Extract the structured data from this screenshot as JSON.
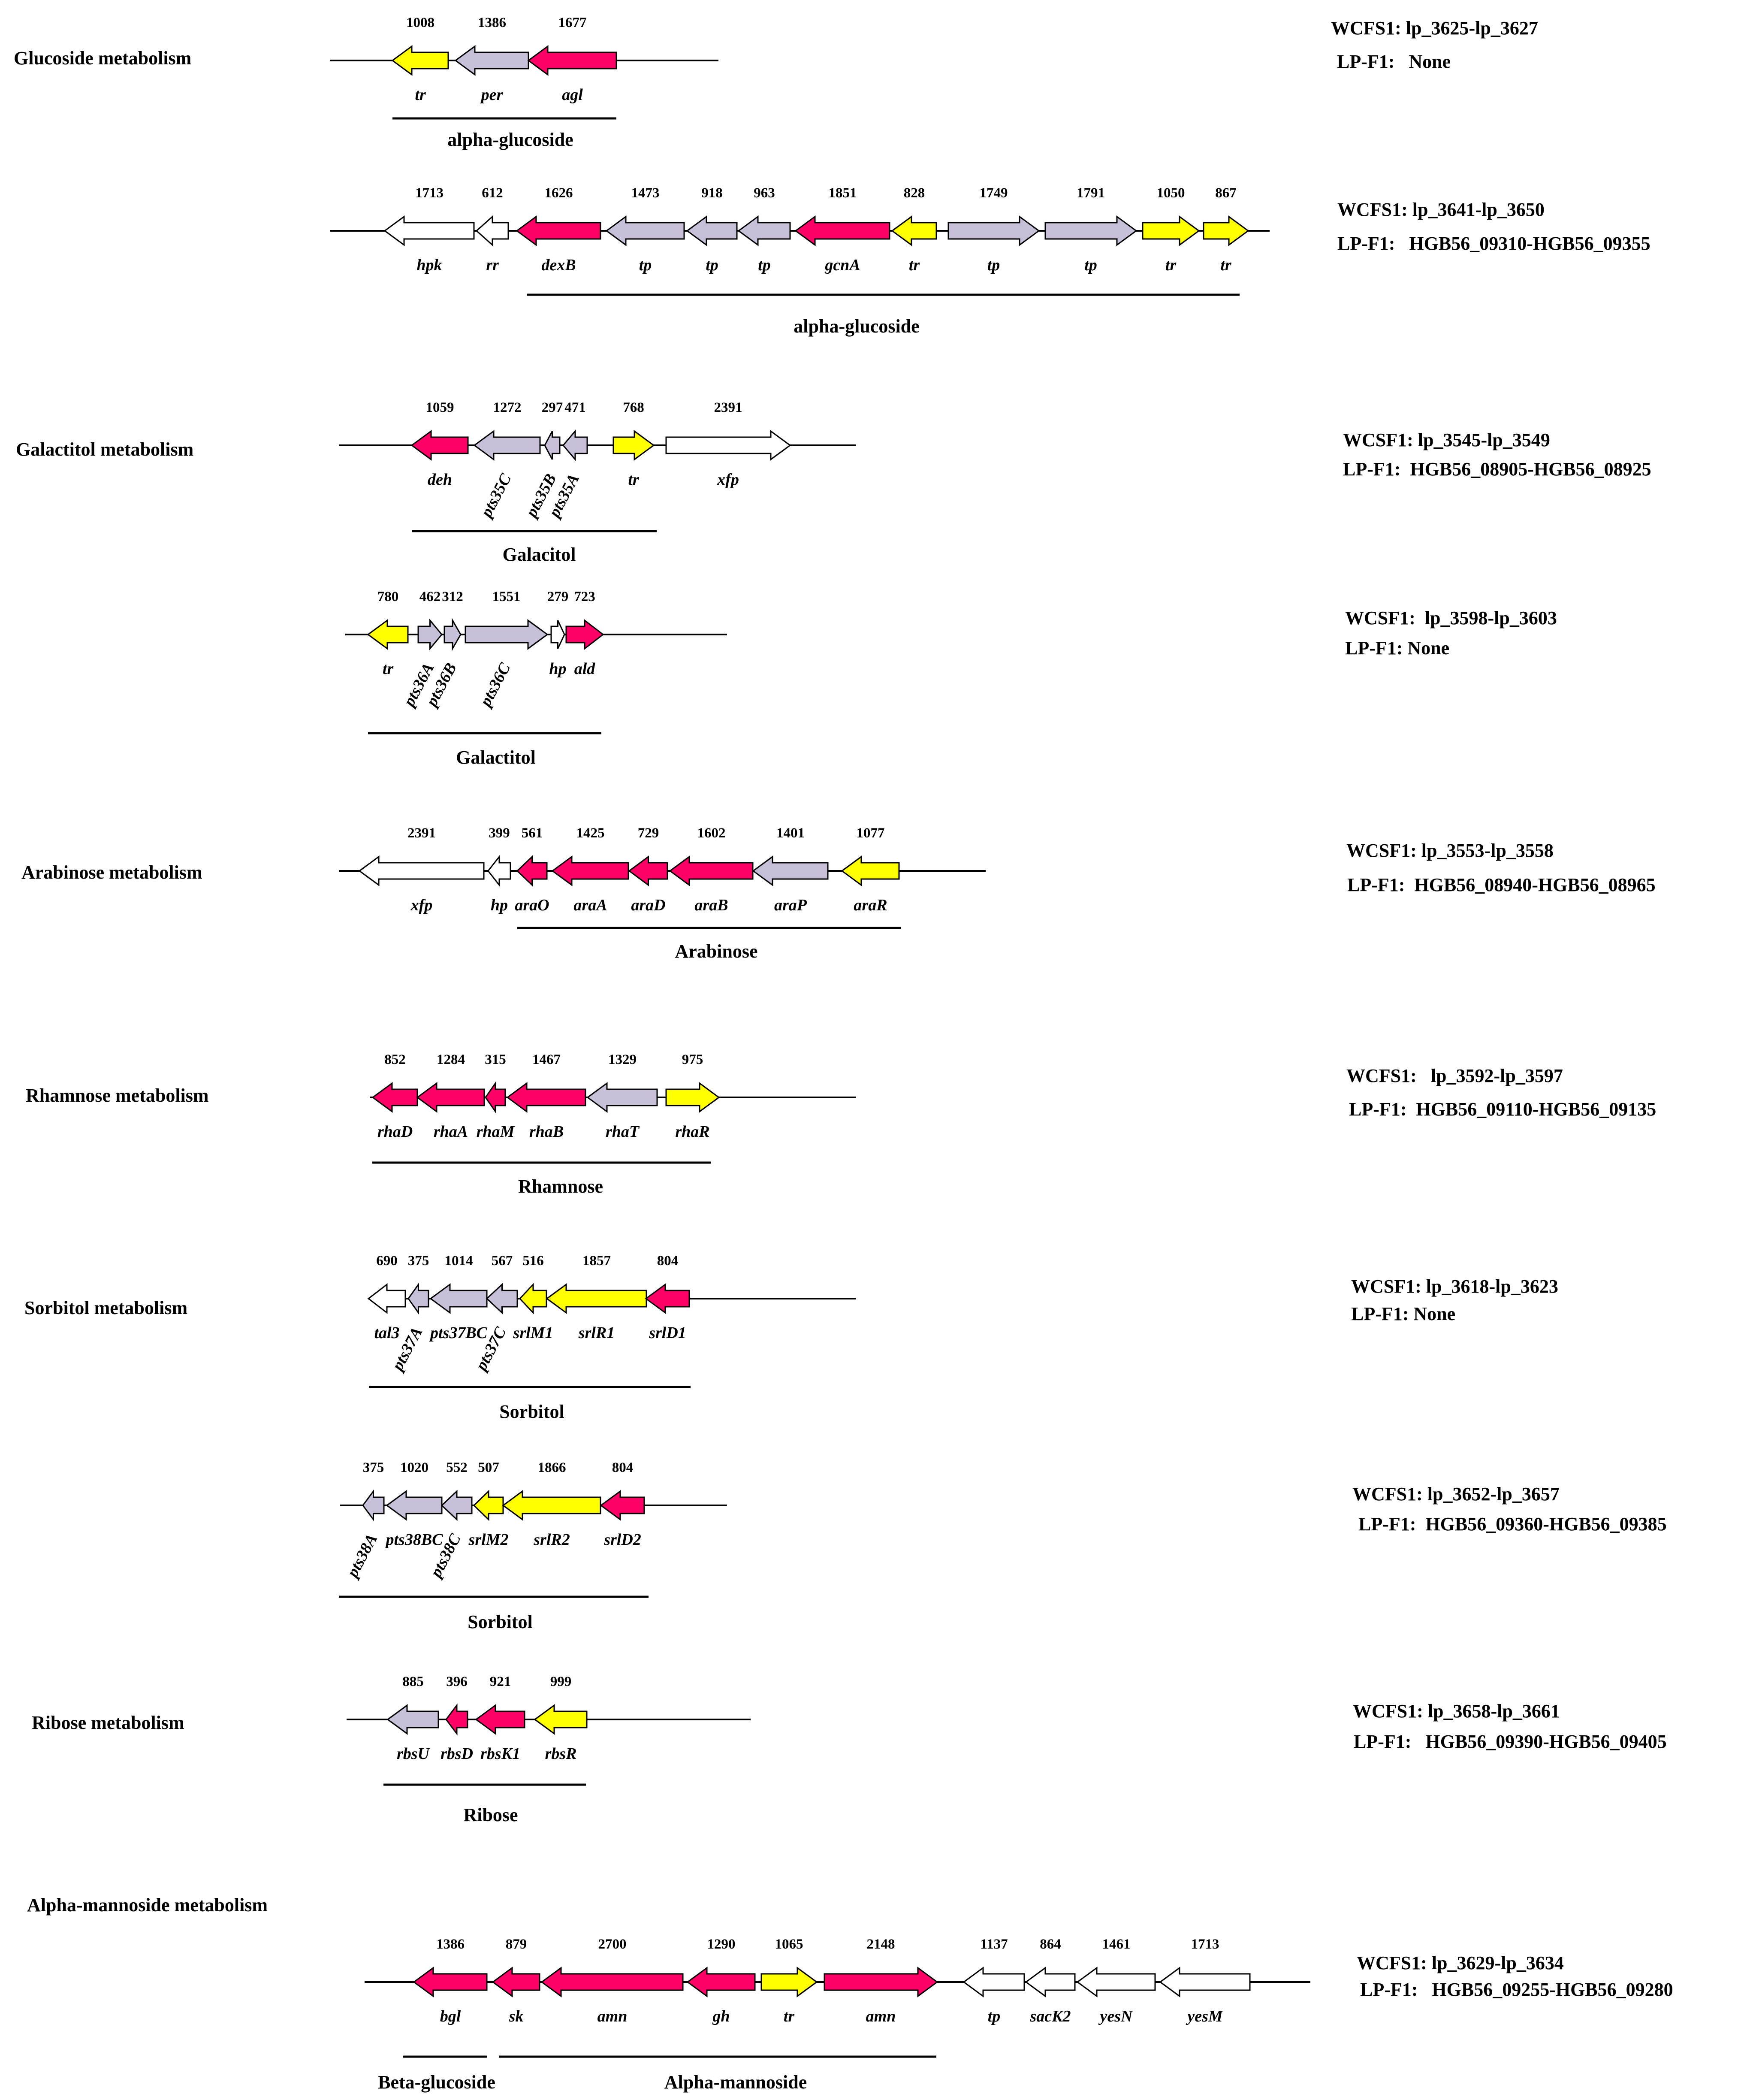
{
  "colors": {
    "regulator": "#ffff00",
    "transport": "#c8c0d8",
    "enzyme": "#ff0066",
    "other": "#ffffff"
  },
  "sections": [
    {
      "title": "Glucoside  metabolism",
      "wcfs1": "WCFS1: lp_3625-lp_3627",
      "lpf1": "LP-F1:   None",
      "genes": [
        {
          "label": "tr",
          "size": "1008",
          "color": "regulator",
          "dir": "left"
        },
        {
          "label": "per",
          "size": "1386",
          "color": "transport",
          "dir": "left"
        },
        {
          "label": "agl",
          "size": "1677",
          "color": "enzyme",
          "dir": "left"
        }
      ],
      "groups": [
        {
          "label": "alpha-glucoside"
        }
      ]
    },
    {
      "title": "",
      "wcfs1": "WCFS1: lp_3641-lp_3650",
      "lpf1": "LP-F1:   HGB56_09310-HGB56_09355",
      "genes": [
        {
          "label": "hpk",
          "size": "1713",
          "color": "other",
          "dir": "left"
        },
        {
          "label": "rr",
          "size": "612",
          "color": "other",
          "dir": "left"
        },
        {
          "label": "dexB",
          "size": "1626",
          "color": "enzyme",
          "dir": "left"
        },
        {
          "label": "tp",
          "size": "1473",
          "color": "transport",
          "dir": "left"
        },
        {
          "label": "tp",
          "size": "918",
          "color": "transport",
          "dir": "left"
        },
        {
          "label": "tp",
          "size": "963",
          "color": "transport",
          "dir": "left"
        },
        {
          "label": "gcnA",
          "size": "1851",
          "color": "enzyme",
          "dir": "left"
        },
        {
          "label": "tr",
          "size": "828",
          "color": "regulator",
          "dir": "left"
        },
        {
          "label": "tp",
          "size": "1749",
          "color": "transport",
          "dir": "right"
        },
        {
          "label": "tp",
          "size": "1791",
          "color": "transport",
          "dir": "right"
        },
        {
          "label": "tr",
          "size": "1050",
          "color": "regulator",
          "dir": "right"
        },
        {
          "label": "tr",
          "size": "867",
          "color": "regulator",
          "dir": "right"
        }
      ],
      "groups": [
        {
          "label": "alpha-glucoside"
        }
      ]
    },
    {
      "title": "Galactitol metabolism",
      "wcfs1": "WCSF1: lp_3545-lp_3549",
      "lpf1": "LP-F1:  HGB56_08905-HGB56_08925",
      "genes": [
        {
          "label": "deh",
          "size": "1059",
          "color": "enzyme",
          "dir": "left"
        },
        {
          "label": "pts35C",
          "size": "1272",
          "color": "transport",
          "dir": "left"
        },
        {
          "label": "pts35B",
          "size": "297",
          "color": "transport",
          "dir": "left"
        },
        {
          "label": "pts35A",
          "size": "471",
          "color": "transport",
          "dir": "left"
        },
        {
          "label": "tr",
          "size": "768",
          "color": "regulator",
          "dir": "right"
        },
        {
          "label": "xfp",
          "size": "2391",
          "color": "other",
          "dir": "right"
        }
      ],
      "groups": [
        {
          "label": "Galacitol"
        }
      ]
    },
    {
      "title": "",
      "wcfs1": "WCSF1:  lp_3598-lp_3603",
      "lpf1": "LP-F1: None",
      "genes": [
        {
          "label": "tr",
          "size": "780",
          "color": "regulator",
          "dir": "left"
        },
        {
          "label": "pts36A",
          "size": "462",
          "color": "transport",
          "dir": "right"
        },
        {
          "label": "pts36B",
          "size": "312",
          "color": "transport",
          "dir": "right"
        },
        {
          "label": "pts36C",
          "size": "1551",
          "color": "transport",
          "dir": "right"
        },
        {
          "label": "hp",
          "size": "279",
          "color": "other",
          "dir": "right"
        },
        {
          "label": "ald",
          "size": "723",
          "color": "enzyme",
          "dir": "right"
        }
      ],
      "groups": [
        {
          "label": "Galactitol"
        }
      ]
    },
    {
      "title": "Arabinose metabolism",
      "wcfs1": "WCSF1: lp_3553-lp_3558",
      "lpf1": "LP-F1:  HGB56_08940-HGB56_08965",
      "genes": [
        {
          "label": "xfp",
          "size": "2391",
          "color": "other",
          "dir": "left"
        },
        {
          "label": "hp",
          "size": "399",
          "color": "other",
          "dir": "left"
        },
        {
          "label": "araO",
          "size": "561",
          "color": "enzyme",
          "dir": "left"
        },
        {
          "label": "araA",
          "size": "1425",
          "color": "enzyme",
          "dir": "left"
        },
        {
          "label": "araD",
          "size": "729",
          "color": "enzyme",
          "dir": "left"
        },
        {
          "label": "araB",
          "size": "1602",
          "color": "enzyme",
          "dir": "left"
        },
        {
          "label": "araP",
          "size": "1401",
          "color": "transport",
          "dir": "left"
        },
        {
          "label": "araR",
          "size": "1077",
          "color": "regulator",
          "dir": "left"
        }
      ],
      "groups": [
        {
          "label": "Arabinose"
        }
      ]
    },
    {
      "title": "Rhamnose metabolism",
      "wcfs1": "WCFS1:   lp_3592-lp_3597",
      "lpf1": "LP-F1:  HGB56_09110-HGB56_09135",
      "genes": [
        {
          "label": "rhaD",
          "size": "852",
          "color": "enzyme",
          "dir": "left"
        },
        {
          "label": "rhaA",
          "size": "1284",
          "color": "enzyme",
          "dir": "left"
        },
        {
          "label": "rhaM",
          "size": "315",
          "color": "enzyme",
          "dir": "left"
        },
        {
          "label": "rhaB",
          "size": "1467",
          "color": "enzyme",
          "dir": "left"
        },
        {
          "label": "rhaT",
          "size": "1329",
          "color": "transport",
          "dir": "left"
        },
        {
          "label": "rhaR",
          "size": "975",
          "color": "regulator",
          "dir": "right"
        }
      ],
      "groups": [
        {
          "label": "Rhamnose"
        }
      ]
    },
    {
      "title": "Sorbitol metabolism",
      "wcfs1": "WCSF1: lp_3618-lp_3623",
      "lpf1": "LP-F1: None",
      "genes": [
        {
          "label": "tal3",
          "size": "690",
          "color": "other",
          "dir": "left"
        },
        {
          "label": "pts37A",
          "size": "375",
          "color": "transport",
          "dir": "left"
        },
        {
          "label": "pts37BC",
          "size": "1014",
          "color": "transport",
          "dir": "left"
        },
        {
          "label": "pts37C",
          "size": "567",
          "color": "transport",
          "dir": "left"
        },
        {
          "label": "srlM1",
          "size": "516",
          "color": "regulator",
          "dir": "left"
        },
        {
          "label": "srlR1",
          "size": "1857",
          "color": "regulator",
          "dir": "left"
        },
        {
          "label": "srlD1",
          "size": "804",
          "color": "enzyme",
          "dir": "left"
        }
      ],
      "groups": [
        {
          "label": "Sorbitol"
        }
      ]
    },
    {
      "title": "",
      "wcfs1": "WCFS1: lp_3652-lp_3657",
      "lpf1": "LP-F1:  HGB56_09360-HGB56_09385",
      "genes": [
        {
          "label": "pts38A",
          "size": "375",
          "color": "transport",
          "dir": "left"
        },
        {
          "label": "pts38BC",
          "size": "1020",
          "color": "transport",
          "dir": "left"
        },
        {
          "label": "pts38C",
          "size": "552",
          "color": "transport",
          "dir": "left"
        },
        {
          "label": "srlM2",
          "size": "507",
          "color": "regulator",
          "dir": "left"
        },
        {
          "label": "srlR2",
          "size": "1866",
          "color": "regulator",
          "dir": "left"
        },
        {
          "label": "srlD2",
          "size": "804",
          "color": "enzyme",
          "dir": "left"
        }
      ],
      "groups": [
        {
          "label": "Sorbitol"
        }
      ]
    },
    {
      "title": "Ribose metabolism",
      "wcfs1": "WCFS1: lp_3658-lp_3661",
      "lpf1": "LP-F1:   HGB56_09390-HGB56_09405",
      "genes": [
        {
          "label": "rbsU",
          "size": "885",
          "color": "transport",
          "dir": "left"
        },
        {
          "label": "rbsD",
          "size": "396",
          "color": "enzyme",
          "dir": "left"
        },
        {
          "label": "rbsK1",
          "size": "921",
          "color": "enzyme",
          "dir": "left"
        },
        {
          "label": "rbsR",
          "size": "999",
          "color": "regulator",
          "dir": "left"
        }
      ],
      "groups": [
        {
          "label": "Ribose"
        }
      ]
    },
    {
      "title": "Alpha-mannoside metabolism",
      "wcfs1": "WCFS1: lp_3629-lp_3634",
      "lpf1": "LP-F1:   HGB56_09255-HGB56_09280",
      "genes": [
        {
          "label": "bgl",
          "size": "1386",
          "color": "enzyme",
          "dir": "left"
        },
        {
          "label": "sk",
          "size": "879",
          "color": "enzyme",
          "dir": "left"
        },
        {
          "label": "amn",
          "size": "2700",
          "color": "enzyme",
          "dir": "left"
        },
        {
          "label": "gh",
          "size": "1290",
          "color": "enzyme",
          "dir": "left"
        },
        {
          "label": "tr",
          "size": "1065",
          "color": "regulator",
          "dir": "right"
        },
        {
          "label": "amn",
          "size": "2148",
          "color": "enzyme",
          "dir": "right"
        },
        {
          "label": "tp",
          "size": "1137",
          "color": "other",
          "dir": "left"
        },
        {
          "label": "sacK2",
          "size": "864",
          "color": "other",
          "dir": "left"
        },
        {
          "label": "yesN",
          "size": "1461",
          "color": "other",
          "dir": "left"
        },
        {
          "label": "yesM",
          "size": "1713",
          "color": "other",
          "dir": "left"
        }
      ],
      "groups": [
        {
          "label": "Beta-glucoside"
        },
        {
          "label": "Alpha-mannoside"
        }
      ]
    }
  ]
}
